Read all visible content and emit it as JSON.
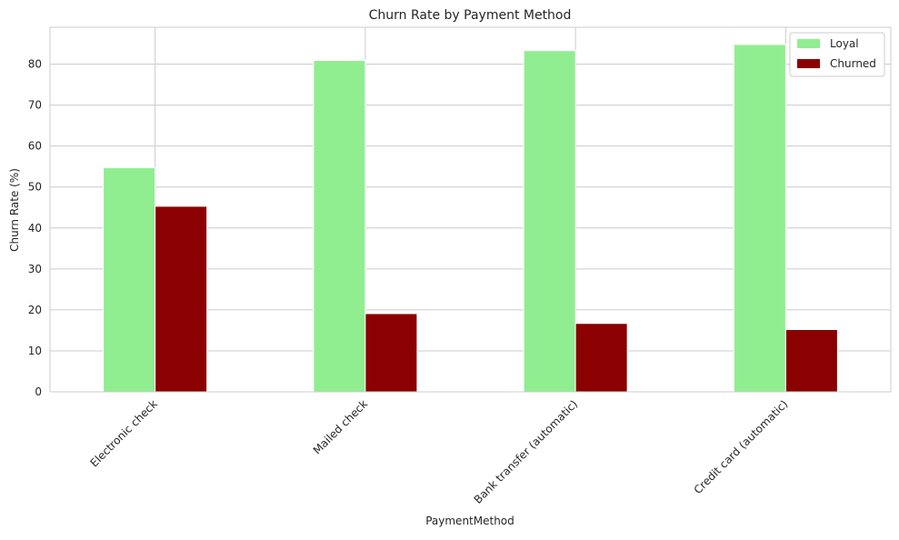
{
  "chart_data": {
    "type": "bar",
    "title": "Churn Rate by Payment Method",
    "xlabel": "PaymentMethod",
    "ylabel": "Churn Rate (%)",
    "categories": [
      "Electronic check",
      "Mailed check",
      "Bank transfer (automatic)",
      "Credit card (automatic)"
    ],
    "series": [
      {
        "name": "Loyal",
        "color": "#90ee90",
        "values": [
          54.7,
          80.9,
          83.3,
          84.8
        ]
      },
      {
        "name": "Churned",
        "color": "#8b0000",
        "values": [
          45.3,
          19.1,
          16.7,
          15.2
        ]
      }
    ],
    "ylim": [
      0,
      89
    ],
    "yticks": [
      0,
      10,
      20,
      30,
      40,
      50,
      60,
      70,
      80
    ],
    "grid": true,
    "legend_position": "top-right",
    "x_tick_rotation": 45
  }
}
